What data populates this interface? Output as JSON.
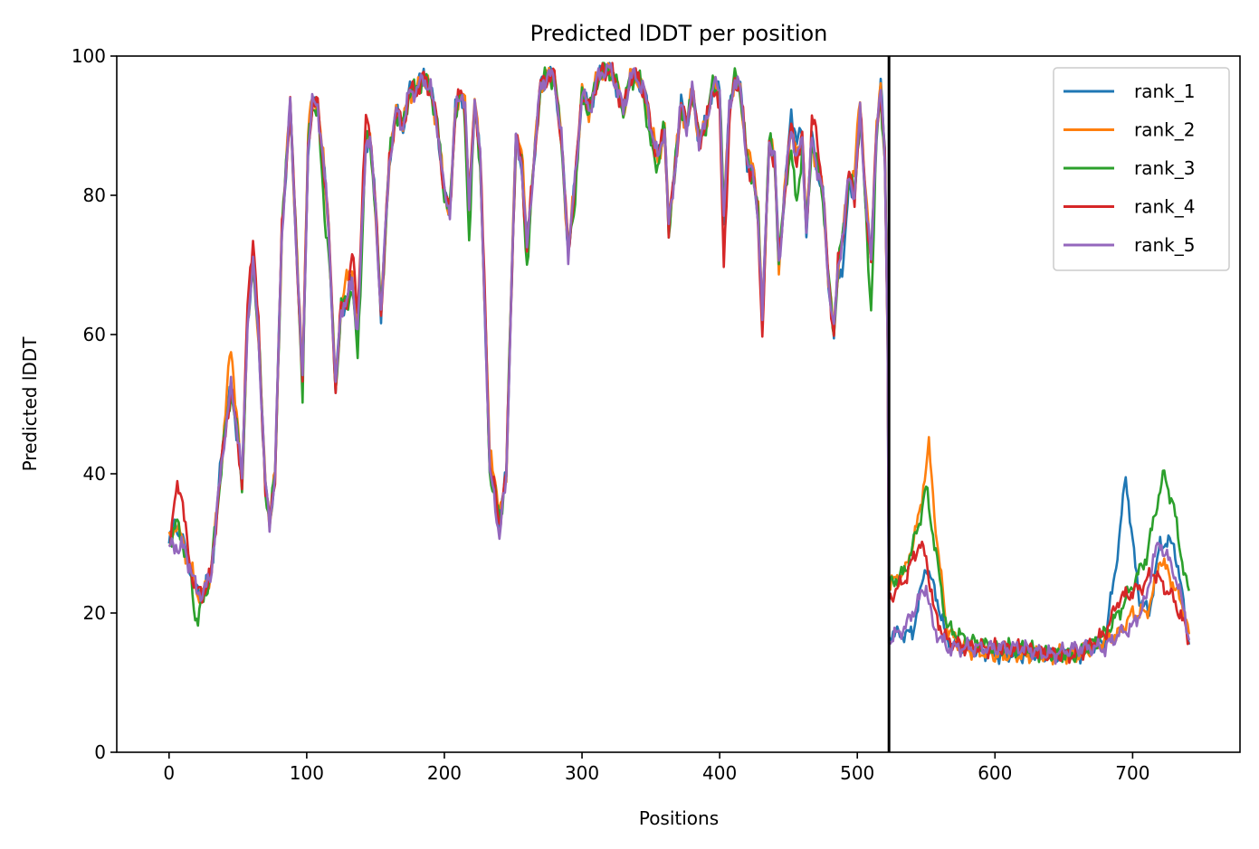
{
  "chart_data": {
    "type": "line",
    "title": "Predicted lDDT per position",
    "xlabel": "Positions",
    "ylabel": "Predicted lDDT",
    "xlim": [
      -38,
      778
    ],
    "ylim": [
      0,
      100
    ],
    "xticks": [
      0,
      100,
      200,
      300,
      400,
      500,
      600,
      700
    ],
    "yticks": [
      0,
      20,
      40,
      60,
      80,
      100
    ],
    "vline": 523,
    "grid": false,
    "legend_position": "top-right",
    "colors": [
      "#1f77b4",
      "#ff7f0e",
      "#2ca02c",
      "#d62728",
      "#9467bd"
    ],
    "series_names": [
      "rank_1",
      "rank_2",
      "rank_3",
      "rank_4",
      "rank_5"
    ],
    "base_profile": [
      [
        0,
        30
      ],
      [
        5,
        33
      ],
      [
        10,
        30
      ],
      [
        15,
        27
      ],
      [
        20,
        23
      ],
      [
        25,
        23
      ],
      [
        30,
        25
      ],
      [
        35,
        35
      ],
      [
        40,
        45
      ],
      [
        45,
        52
      ],
      [
        50,
        45
      ],
      [
        53,
        38
      ],
      [
        57,
        62
      ],
      [
        61,
        70
      ],
      [
        65,
        60
      ],
      [
        70,
        38
      ],
      [
        73,
        33
      ],
      [
        77,
        40
      ],
      [
        82,
        75
      ],
      [
        88,
        93
      ],
      [
        92,
        75
      ],
      [
        97,
        53
      ],
      [
        101,
        87
      ],
      [
        104,
        93
      ],
      [
        108,
        93
      ],
      [
        112,
        85
      ],
      [
        116,
        75
      ],
      [
        121,
        52
      ],
      [
        125,
        64
      ],
      [
        130,
        65
      ],
      [
        133,
        68
      ],
      [
        137,
        60
      ],
      [
        143,
        88
      ],
      [
        146,
        88
      ],
      [
        150,
        78
      ],
      [
        154,
        63
      ],
      [
        160,
        85
      ],
      [
        165,
        92
      ],
      [
        170,
        90
      ],
      [
        175,
        95
      ],
      [
        180,
        95
      ],
      [
        185,
        97
      ],
      [
        190,
        95
      ],
      [
        195,
        90
      ],
      [
        200,
        80
      ],
      [
        204,
        78
      ],
      [
        208,
        92
      ],
      [
        212,
        95
      ],
      [
        215,
        93
      ],
      [
        218,
        78
      ],
      [
        222,
        94
      ],
      [
        226,
        85
      ],
      [
        230,
        60
      ],
      [
        233,
        40
      ],
      [
        237,
        37
      ],
      [
        240,
        33
      ],
      [
        245,
        40
      ],
      [
        248,
        62
      ],
      [
        252,
        88
      ],
      [
        256,
        85
      ],
      [
        260,
        72
      ],
      [
        265,
        85
      ],
      [
        270,
        96
      ],
      [
        275,
        97
      ],
      [
        280,
        97
      ],
      [
        285,
        88
      ],
      [
        290,
        72
      ],
      [
        295,
        82
      ],
      [
        300,
        95
      ],
      [
        305,
        92
      ],
      [
        310,
        96
      ],
      [
        315,
        98
      ],
      [
        320,
        98
      ],
      [
        325,
        96
      ],
      [
        330,
        92
      ],
      [
        335,
        97
      ],
      [
        340,
        97
      ],
      [
        345,
        95
      ],
      [
        350,
        90
      ],
      [
        355,
        85
      ],
      [
        360,
        90
      ],
      [
        363,
        75
      ],
      [
        368,
        85
      ],
      [
        372,
        93
      ],
      [
        376,
        90
      ],
      [
        380,
        95
      ],
      [
        385,
        88
      ],
      [
        390,
        90
      ],
      [
        395,
        96
      ],
      [
        400,
        95
      ],
      [
        403,
        77
      ],
      [
        407,
        92
      ],
      [
        411,
        97
      ],
      [
        415,
        95
      ],
      [
        420,
        85
      ],
      [
        425,
        82
      ],
      [
        428,
        77
      ],
      [
        431,
        62
      ],
      [
        436,
        88
      ],
      [
        440,
        85
      ],
      [
        443,
        70
      ],
      [
        447,
        80
      ],
      [
        452,
        90
      ],
      [
        456,
        85
      ],
      [
        460,
        88
      ],
      [
        463,
        75
      ],
      [
        467,
        88
      ],
      [
        471,
        84
      ],
      [
        475,
        80
      ],
      [
        479,
        68
      ],
      [
        483,
        60
      ],
      [
        486,
        70
      ],
      [
        490,
        75
      ],
      [
        494,
        83
      ],
      [
        498,
        80
      ],
      [
        502,
        92
      ],
      [
        506,
        80
      ],
      [
        510,
        70
      ],
      [
        514,
        90
      ],
      [
        517,
        95
      ],
      [
        520,
        85
      ],
      [
        522,
        60
      ]
    ],
    "tail_profiles": [
      [
        [
          523,
          17
        ],
        [
          540,
          17
        ],
        [
          550,
          27
        ],
        [
          558,
          22
        ],
        [
          565,
          16
        ],
        [
          580,
          15
        ],
        [
          600,
          14
        ],
        [
          620,
          14
        ],
        [
          640,
          14
        ],
        [
          660,
          14
        ],
        [
          680,
          16
        ],
        [
          690,
          30
        ],
        [
          695,
          40
        ],
        [
          700,
          30
        ],
        [
          705,
          22
        ],
        [
          712,
          20
        ],
        [
          720,
          30
        ],
        [
          730,
          30
        ],
        [
          738,
          20
        ],
        [
          741,
          16
        ]
      ],
      [
        [
          523,
          24
        ],
        [
          535,
          26
        ],
        [
          545,
          34
        ],
        [
          552,
          44
        ],
        [
          558,
          30
        ],
        [
          565,
          18
        ],
        [
          575,
          15
        ],
        [
          600,
          14
        ],
        [
          620,
          14
        ],
        [
          640,
          14
        ],
        [
          660,
          14
        ],
        [
          680,
          16
        ],
        [
          690,
          17
        ],
        [
          700,
          20
        ],
        [
          710,
          20
        ],
        [
          715,
          23
        ],
        [
          720,
          28
        ],
        [
          730,
          24
        ],
        [
          738,
          20
        ],
        [
          741,
          17
        ]
      ],
      [
        [
          523,
          24
        ],
        [
          535,
          26
        ],
        [
          545,
          33
        ],
        [
          550,
          38
        ],
        [
          556,
          30
        ],
        [
          565,
          18
        ],
        [
          580,
          16
        ],
        [
          600,
          15
        ],
        [
          620,
          15
        ],
        [
          640,
          14
        ],
        [
          660,
          14
        ],
        [
          680,
          17
        ],
        [
          690,
          20
        ],
        [
          700,
          24
        ],
        [
          710,
          28
        ],
        [
          718,
          36
        ],
        [
          723,
          40
        ],
        [
          730,
          35
        ],
        [
          738,
          25
        ],
        [
          741,
          23
        ]
      ],
      [
        [
          523,
          22
        ],
        [
          535,
          25
        ],
        [
          545,
          30
        ],
        [
          550,
          28
        ],
        [
          556,
          20
        ],
        [
          565,
          16
        ],
        [
          580,
          15
        ],
        [
          600,
          15
        ],
        [
          620,
          15
        ],
        [
          640,
          14
        ],
        [
          660,
          14
        ],
        [
          680,
          17
        ],
        [
          690,
          22
        ],
        [
          700,
          23
        ],
        [
          708,
          24
        ],
        [
          715,
          26
        ],
        [
          722,
          24
        ],
        [
          730,
          22
        ],
        [
          738,
          18
        ],
        [
          741,
          16
        ]
      ],
      [
        [
          523,
          16
        ],
        [
          535,
          18
        ],
        [
          545,
          22
        ],
        [
          550,
          24
        ],
        [
          555,
          18
        ],
        [
          565,
          15
        ],
        [
          580,
          15
        ],
        [
          600,
          15
        ],
        [
          620,
          15
        ],
        [
          640,
          14
        ],
        [
          660,
          15
        ],
        [
          680,
          15
        ],
        [
          690,
          17
        ],
        [
          700,
          18
        ],
        [
          710,
          22
        ],
        [
          715,
          28
        ],
        [
          720,
          30
        ],
        [
          730,
          26
        ],
        [
          738,
          20
        ],
        [
          741,
          16
        ]
      ]
    ],
    "series_offsets": [
      [
        [
          40,
          1.5
        ],
        [
          180,
          0.8
        ],
        [
          455,
          3
        ],
        [
          490,
          -4
        ],
        [
          518,
          1
        ]
      ],
      [
        [
          45,
          6
        ],
        [
          100,
          2
        ],
        [
          130,
          3
        ],
        [
          235,
          3
        ],
        [
          255,
          2
        ],
        [
          425,
          2
        ],
        [
          500,
          3
        ]
      ],
      [
        [
          20,
          -4
        ],
        [
          97,
          -1
        ],
        [
          113,
          -5
        ],
        [
          137,
          -3
        ],
        [
          218,
          -4
        ],
        [
          260,
          -2
        ],
        [
          295,
          -2
        ],
        [
          350,
          -3
        ],
        [
          455,
          -6
        ],
        [
          510,
          -6
        ]
      ],
      [
        [
          8,
          7
        ],
        [
          60,
          4
        ],
        [
          135,
          4
        ],
        [
          143,
          3
        ],
        [
          230,
          2
        ],
        [
          403,
          -6
        ],
        [
          431,
          -2
        ],
        [
          470,
          4
        ]
      ],
      [
        [
          5,
          -3
        ],
        [
          50,
          1
        ],
        [
          240,
          -2
        ],
        [
          310,
          0
        ]
      ]
    ]
  }
}
